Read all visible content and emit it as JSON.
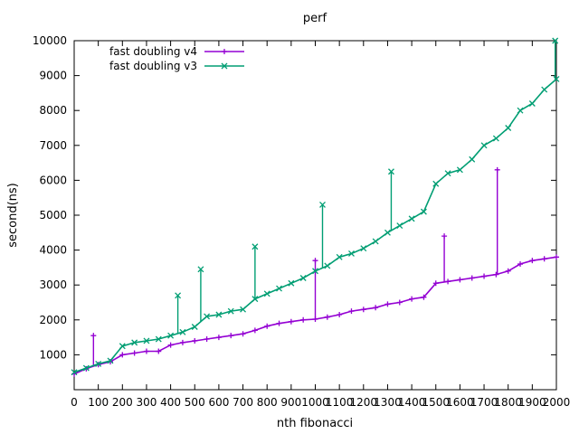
{
  "chart_data": {
    "type": "line",
    "title": "perf",
    "xlabel": "nth fibonacci",
    "ylabel": "second(ns)",
    "xlim": [
      0,
      2000
    ],
    "ylim": [
      0,
      10000
    ],
    "x_ticks": [
      0,
      100,
      200,
      300,
      400,
      500,
      600,
      700,
      800,
      900,
      1000,
      1100,
      1200,
      1300,
      1400,
      1500,
      1600,
      1700,
      1800,
      1900,
      2000
    ],
    "y_ticks": [
      1000,
      2000,
      3000,
      4000,
      5000,
      6000,
      7000,
      8000,
      9000,
      10000
    ],
    "legend_position": "top-left",
    "grid": false,
    "series": [
      {
        "name": "fast doubling v4",
        "color": "#9400d3",
        "marker": "plus",
        "x": [
          0,
          50,
          100,
          150,
          200,
          250,
          300,
          350,
          400,
          450,
          500,
          550,
          600,
          650,
          700,
          750,
          800,
          850,
          900,
          950,
          1000,
          1050,
          1100,
          1150,
          1200,
          1250,
          1300,
          1350,
          1400,
          1450,
          1500,
          1550,
          1600,
          1650,
          1700,
          1750,
          1800,
          1850,
          1900,
          1950,
          2000
        ],
        "values": [
          450,
          600,
          720,
          800,
          1000,
          1050,
          1100,
          1100,
          1280,
          1350,
          1400,
          1450,
          1500,
          1550,
          1600,
          1700,
          1820,
          1900,
          1950,
          2000,
          2020,
          2080,
          2150,
          2250,
          2300,
          2350,
          2450,
          2500,
          2600,
          2650,
          3050,
          3100,
          3150,
          3200,
          3250,
          3300,
          3400,
          3600,
          3700,
          3750,
          3800
        ],
        "spikes": [
          {
            "x": 80,
            "value": 1550
          },
          {
            "x": 1000,
            "value": 3700
          },
          {
            "x": 1535,
            "value": 4400
          },
          {
            "x": 1755,
            "value": 6300
          }
        ]
      },
      {
        "name": "fast doubling v3",
        "color": "#009e73",
        "marker": "cross",
        "x": [
          0,
          50,
          100,
          150,
          200,
          250,
          300,
          350,
          400,
          450,
          500,
          550,
          600,
          650,
          700,
          750,
          800,
          850,
          900,
          950,
          1000,
          1050,
          1100,
          1150,
          1200,
          1250,
          1300,
          1350,
          1400,
          1450,
          1500,
          1550,
          1600,
          1650,
          1700,
          1750,
          1800,
          1850,
          1900,
          1950,
          2000
        ],
        "values": [
          500,
          620,
          740,
          830,
          1250,
          1350,
          1400,
          1450,
          1550,
          1650,
          1800,
          2100,
          2150,
          2250,
          2300,
          2600,
          2750,
          2900,
          3050,
          3200,
          3400,
          3550,
          3800,
          3900,
          4050,
          4250,
          4500,
          4700,
          4900,
          5100,
          5900,
          6200,
          6300,
          6600,
          7000,
          7200,
          7500,
          8000,
          8200,
          8600,
          8900
        ],
        "spikes": [
          {
            "x": 430,
            "value": 2700
          },
          {
            "x": 525,
            "value": 3450
          },
          {
            "x": 750,
            "value": 4100
          },
          {
            "x": 1030,
            "value": 5300
          },
          {
            "x": 1315,
            "value": 6250
          },
          {
            "x": 1995,
            "value": 10000
          }
        ]
      }
    ]
  }
}
